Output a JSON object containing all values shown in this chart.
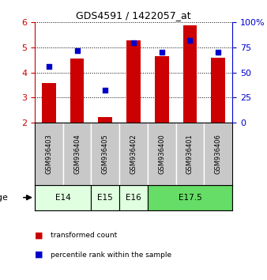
{
  "title": "GDS4591 / 1422057_at",
  "samples": [
    "GSM936403",
    "GSM936404",
    "GSM936405",
    "GSM936402",
    "GSM936400",
    "GSM936401",
    "GSM936406"
  ],
  "transformed_count": [
    3.58,
    4.55,
    2.22,
    5.28,
    4.65,
    5.88,
    4.6
  ],
  "percentile_rank": [
    56,
    72,
    32,
    80,
    70,
    82,
    70
  ],
  "bar_bottom": 2.0,
  "ylim_left": [
    2,
    6
  ],
  "ylim_right": [
    0,
    100
  ],
  "yticks_left": [
    2,
    3,
    4,
    5,
    6
  ],
  "yticks_right": [
    0,
    25,
    50,
    75,
    100
  ],
  "yticklabels_right": [
    "0",
    "25",
    "50",
    "75",
    "100%"
  ],
  "bar_color": "#cc0000",
  "dot_color": "#0000cc",
  "age_groups": [
    {
      "label": "E14",
      "start": 0,
      "end": 2,
      "color": "#e0ffe0"
    },
    {
      "label": "E15",
      "start": 2,
      "end": 3,
      "color": "#e0ffe0"
    },
    {
      "label": "E16",
      "start": 3,
      "end": 4,
      "color": "#e0ffe0"
    },
    {
      "label": "E17.5",
      "start": 4,
      "end": 7,
      "color": "#66dd66"
    }
  ],
  "legend_bar_label": "transformed count",
  "legend_dot_label": "percentile rank within the sample",
  "xlabel_age": "age",
  "tick_color_left": "#cc0000",
  "tick_color_right": "#0000cc",
  "bar_width": 0.5,
  "gray_color": "#c8c8c8"
}
